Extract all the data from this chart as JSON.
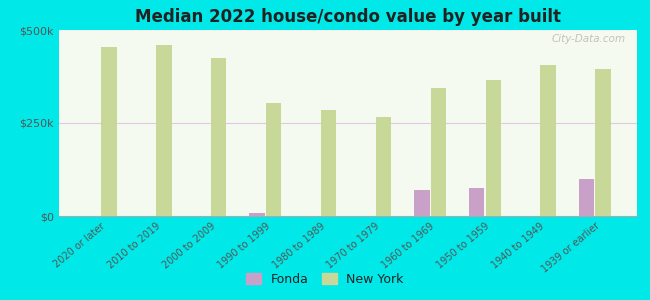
{
  "title": "Median 2022 house/condo value by year built",
  "background_color": "#00e8e8",
  "plot_bg_top": "#e8f0d8",
  "plot_bg_bottom": "#f5faf0",
  "categories": [
    "2020 or later",
    "2010 to 2019",
    "2000 to 2009",
    "1990 to 1999",
    "1980 to 1989",
    "1970 to 1979",
    "1960 to 1969",
    "1950 to 1959",
    "1940 to 1949",
    "1939 or earlier"
  ],
  "fonda_values": [
    0,
    0,
    0,
    8000,
    0,
    0,
    70000,
    75000,
    0,
    100000
  ],
  "newyork_values": [
    455000,
    460000,
    425000,
    305000,
    285000,
    265000,
    345000,
    365000,
    405000,
    395000
  ],
  "fonda_color": "#c8a0c8",
  "newyork_color": "#c8d898",
  "ylim": [
    0,
    500000
  ],
  "ytick_labels": [
    "$0",
    "$250k",
    "$500k"
  ],
  "ytick_values": [
    0,
    250000,
    500000
  ],
  "grid_color": "#e0c8e0",
  "watermark": "City-Data.com",
  "legend_fonda": "Fonda",
  "legend_newyork": "New York",
  "bar_width": 0.28,
  "bar_gap": 0.02
}
